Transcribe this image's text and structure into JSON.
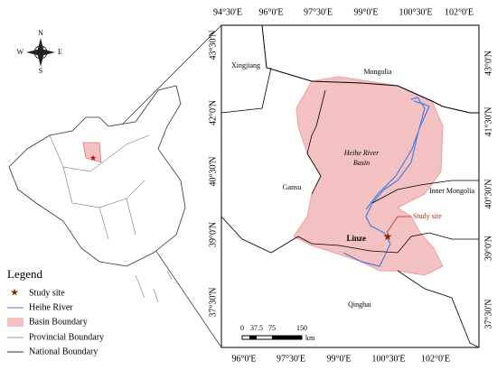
{
  "map": {
    "top_labels": [
      "94°30'E",
      "96°0'E",
      "97°30'E",
      "99°0'E",
      "100°30'E",
      "102°0'E"
    ],
    "bottom_labels": [
      "96°0'E",
      "97°30'E",
      "99°0'E",
      "100°30'E",
      "102°0'E"
    ],
    "left_labels": [
      "43°30'N",
      "42°0'N",
      "40°30'N",
      "39°0'N",
      "37°30'N"
    ],
    "right_labels": [
      "43°0'N",
      "41°30'N",
      "40°30'N",
      "39°0'N",
      "37°30'N"
    ],
    "regions": [
      "Mongolia",
      "Xingjiang",
      "Gansu",
      "Inner Mongolia",
      "Qinghai"
    ],
    "basin_label": [
      "Heihe River",
      "Basin"
    ],
    "study_site": "Study site",
    "town": "Linze"
  },
  "legend": {
    "title": "Legend",
    "items": [
      "Study site",
      "Heihe River",
      "Basin Boundary",
      "Provincial Boundary",
      "National Boundary"
    ]
  },
  "scale": {
    "ticks": [
      "0",
      "37.5",
      "75",
      "150"
    ],
    "unit": "km"
  },
  "compass": {
    "n": "N",
    "s": "S",
    "e": "E",
    "w": "W"
  }
}
